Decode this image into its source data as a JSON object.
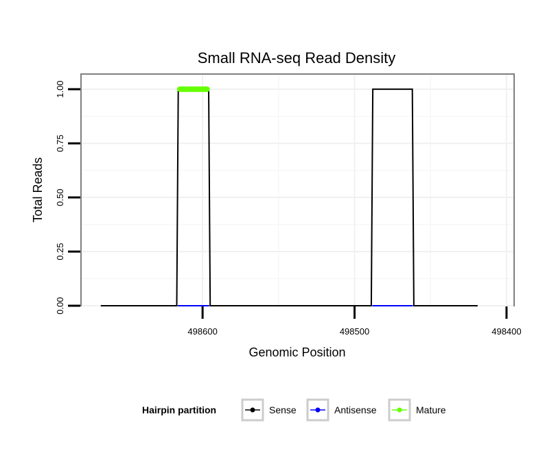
{
  "chart_data": {
    "type": "line",
    "title": "Small RNA-seq Read Density",
    "xlabel": "Genomic Position",
    "ylabel": "Total Reads",
    "x_reversed": true,
    "xlim": [
      498680,
      498395
    ],
    "ylim": [
      0,
      1.07
    ],
    "x_ticks": [
      498600,
      498500,
      498400
    ],
    "x_tick_labels": [
      "498600",
      "498500",
      "498400"
    ],
    "y_ticks": [
      0,
      0.25,
      0.5,
      0.75,
      1.0
    ],
    "y_tick_labels": [
      "0.00",
      "0.25",
      "0.50",
      "0.75",
      "1.00"
    ],
    "grid": true,
    "legend": {
      "title": "Hairpin partition",
      "placement": "bottom",
      "entries": [
        {
          "label": "Sense",
          "color": "#000000"
        },
        {
          "label": "Antisense",
          "color": "#0000ff"
        },
        {
          "label": "Mature",
          "color": "#66ff00"
        }
      ]
    },
    "series": [
      {
        "name": "Sense",
        "color": "#000000",
        "x": [
          498667,
          498617,
          498616,
          498596,
          498595,
          498489,
          498488,
          498462,
          498461,
          498419
        ],
        "y": [
          0,
          0,
          1,
          1,
          0,
          0,
          1,
          1,
          0,
          0
        ]
      },
      {
        "name": "Antisense",
        "color": "#0000ff",
        "segments": [
          {
            "x": [
              498616,
              498596
            ],
            "y": [
              0,
              0
            ]
          },
          {
            "x": [
              498488,
              498462
            ],
            "y": [
              0,
              0
            ]
          }
        ]
      },
      {
        "name": "Mature",
        "color": "#66ff00",
        "segments": [
          {
            "x": [
              498615,
              498597
            ],
            "y": [
              1,
              1
            ]
          }
        ]
      }
    ]
  }
}
